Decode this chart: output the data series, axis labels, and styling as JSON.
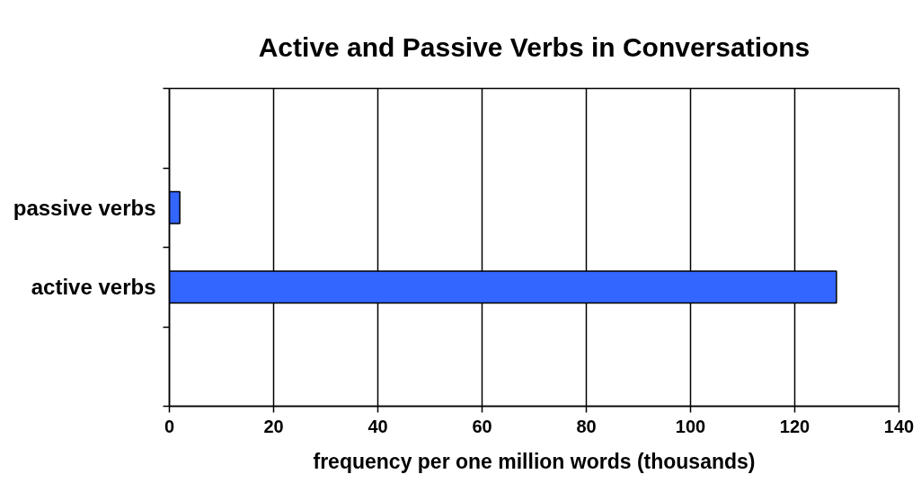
{
  "chart_data": {
    "type": "bar",
    "orientation": "horizontal",
    "title": "Active and Passive Verbs in Conversations",
    "xlabel": "frequency per one million words (thousands)",
    "categories": [
      null,
      "passive verbs",
      "active verbs",
      null
    ],
    "values": [
      null,
      2,
      128,
      null
    ],
    "color": "#3366ff",
    "xlim": [
      0,
      140
    ],
    "xticks": [
      0,
      20,
      40,
      60,
      80,
      100,
      120,
      140
    ],
    "grid": "x"
  }
}
